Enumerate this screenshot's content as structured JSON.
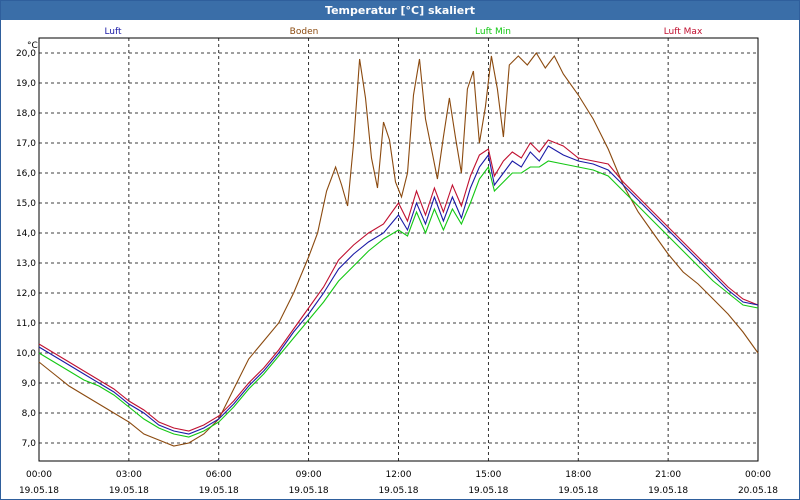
{
  "window": {
    "title": "Temperatur [°C] skaliert"
  },
  "chart_data": {
    "type": "line",
    "title": "Temperatur [°C] skaliert",
    "ylabel": "°C",
    "xlabel": "",
    "ylim": [
      6.4,
      20.5
    ],
    "xlim": [
      0,
      24
    ],
    "grid": true,
    "legend_placement": "top",
    "y_ticks": [
      "7,0",
      "8,0",
      "9,0",
      "10,0",
      "11,0",
      "12,0",
      "13,0",
      "14,0",
      "15,0",
      "16,0",
      "17,0",
      "18,0",
      "19,0",
      "20,0"
    ],
    "x_ticks": [
      {
        "time": "00:00",
        "date": "19.05.18"
      },
      {
        "time": "03:00",
        "date": "19.05.18"
      },
      {
        "time": "06:00",
        "date": "19.05.18"
      },
      {
        "time": "09:00",
        "date": "19.05.18"
      },
      {
        "time": "12:00",
        "date": "19.05.18"
      },
      {
        "time": "15:00",
        "date": "19.05.18"
      },
      {
        "time": "18:00",
        "date": "19.05.18"
      },
      {
        "time": "21:00",
        "date": "19.05.18"
      },
      {
        "time": "00:00",
        "date": "20.05.18"
      }
    ],
    "series": [
      {
        "name": "Luft",
        "color": "#1a1aa6",
        "points": [
          [
            0,
            10.2
          ],
          [
            0.5,
            9.9
          ],
          [
            1,
            9.6
          ],
          [
            1.5,
            9.3
          ],
          [
            2,
            9.0
          ],
          [
            2.5,
            8.7
          ],
          [
            3,
            8.3
          ],
          [
            3.5,
            8.0
          ],
          [
            4,
            7.6
          ],
          [
            4.5,
            7.4
          ],
          [
            5,
            7.3
          ],
          [
            5.5,
            7.5
          ],
          [
            6,
            7.8
          ],
          [
            6.5,
            8.3
          ],
          [
            7,
            8.9
          ],
          [
            7.5,
            9.4
          ],
          [
            8,
            10.0
          ],
          [
            8.5,
            10.7
          ],
          [
            9,
            11.3
          ],
          [
            9.5,
            12.0
          ],
          [
            10,
            12.8
          ],
          [
            10.5,
            13.3
          ],
          [
            11,
            13.7
          ],
          [
            11.5,
            14.0
          ],
          [
            12,
            14.6
          ],
          [
            12.3,
            14.1
          ],
          [
            12.6,
            15.0
          ],
          [
            12.9,
            14.3
          ],
          [
            13.2,
            15.2
          ],
          [
            13.5,
            14.4
          ],
          [
            13.8,
            15.2
          ],
          [
            14.1,
            14.5
          ],
          [
            14.4,
            15.5
          ],
          [
            14.7,
            16.2
          ],
          [
            15,
            16.6
          ],
          [
            15.2,
            15.6
          ],
          [
            15.5,
            16.0
          ],
          [
            15.8,
            16.4
          ],
          [
            16.1,
            16.2
          ],
          [
            16.4,
            16.7
          ],
          [
            16.7,
            16.4
          ],
          [
            17,
            16.9
          ],
          [
            17.5,
            16.6
          ],
          [
            18,
            16.4
          ],
          [
            18.5,
            16.3
          ],
          [
            19,
            16.1
          ],
          [
            19.5,
            15.6
          ],
          [
            20,
            15.1
          ],
          [
            20.5,
            14.6
          ],
          [
            21,
            14.1
          ],
          [
            21.5,
            13.6
          ],
          [
            22,
            13.1
          ],
          [
            22.5,
            12.6
          ],
          [
            23,
            12.1
          ],
          [
            23.5,
            11.7
          ],
          [
            24,
            11.6
          ]
        ]
      },
      {
        "name": "Boden",
        "color": "#8b4a0f",
        "points": [
          [
            0,
            9.7
          ],
          [
            0.5,
            9.3
          ],
          [
            1,
            8.9
          ],
          [
            1.5,
            8.6
          ],
          [
            2,
            8.3
          ],
          [
            2.5,
            8.0
          ],
          [
            3,
            7.7
          ],
          [
            3.5,
            7.3
          ],
          [
            4,
            7.1
          ],
          [
            4.5,
            6.9
          ],
          [
            5,
            7.0
          ],
          [
            5.5,
            7.3
          ],
          [
            6,
            7.8
          ],
          [
            6.5,
            8.8
          ],
          [
            7,
            9.8
          ],
          [
            7.5,
            10.4
          ],
          [
            8,
            11.0
          ],
          [
            8.5,
            12.0
          ],
          [
            9,
            13.2
          ],
          [
            9.3,
            14.0
          ],
          [
            9.6,
            15.4
          ],
          [
            9.9,
            16.2
          ],
          [
            10.1,
            15.6
          ],
          [
            10.3,
            14.9
          ],
          [
            10.5,
            17.0
          ],
          [
            10.7,
            19.8
          ],
          [
            10.9,
            18.5
          ],
          [
            11.1,
            16.5
          ],
          [
            11.3,
            15.5
          ],
          [
            11.5,
            17.7
          ],
          [
            11.7,
            17.1
          ],
          [
            11.9,
            15.7
          ],
          [
            12.1,
            15.2
          ],
          [
            12.3,
            16.0
          ],
          [
            12.5,
            18.6
          ],
          [
            12.7,
            19.8
          ],
          [
            12.9,
            17.8
          ],
          [
            13.1,
            16.8
          ],
          [
            13.3,
            15.8
          ],
          [
            13.5,
            17.2
          ],
          [
            13.7,
            18.5
          ],
          [
            13.9,
            17.2
          ],
          [
            14.1,
            16.0
          ],
          [
            14.3,
            18.8
          ],
          [
            14.5,
            19.4
          ],
          [
            14.7,
            17.0
          ],
          [
            14.9,
            18.2
          ],
          [
            15.1,
            19.9
          ],
          [
            15.3,
            18.8
          ],
          [
            15.5,
            17.2
          ],
          [
            15.7,
            19.6
          ],
          [
            16,
            19.9
          ],
          [
            16.3,
            19.6
          ],
          [
            16.6,
            20.0
          ],
          [
            16.9,
            19.5
          ],
          [
            17.2,
            19.9
          ],
          [
            17.5,
            19.3
          ],
          [
            18,
            18.6
          ],
          [
            18.5,
            17.8
          ],
          [
            19,
            16.8
          ],
          [
            19.5,
            15.6
          ],
          [
            20,
            14.7
          ],
          [
            20.5,
            14.0
          ],
          [
            21,
            13.3
          ],
          [
            21.5,
            12.7
          ],
          [
            22,
            12.3
          ],
          [
            22.5,
            11.8
          ],
          [
            23,
            11.3
          ],
          [
            23.5,
            10.7
          ],
          [
            24,
            10.0
          ]
        ]
      },
      {
        "name": "Luft Min",
        "color": "#14c814",
        "points": [
          [
            0,
            10.0
          ],
          [
            0.5,
            9.7
          ],
          [
            1,
            9.4
          ],
          [
            1.5,
            9.1
          ],
          [
            2,
            8.9
          ],
          [
            2.5,
            8.6
          ],
          [
            3,
            8.2
          ],
          [
            3.5,
            7.8
          ],
          [
            4,
            7.5
          ],
          [
            4.5,
            7.3
          ],
          [
            5,
            7.2
          ],
          [
            5.5,
            7.4
          ],
          [
            6,
            7.7
          ],
          [
            6.5,
            8.2
          ],
          [
            7,
            8.8
          ],
          [
            7.5,
            9.3
          ],
          [
            8,
            9.9
          ],
          [
            8.5,
            10.5
          ],
          [
            9,
            11.1
          ],
          [
            9.5,
            11.7
          ],
          [
            10,
            12.4
          ],
          [
            10.5,
            12.9
          ],
          [
            11,
            13.4
          ],
          [
            11.5,
            13.8
          ],
          [
            12,
            14.1
          ],
          [
            12.3,
            13.9
          ],
          [
            12.6,
            14.7
          ],
          [
            12.9,
            14.0
          ],
          [
            13.2,
            14.8
          ],
          [
            13.5,
            14.1
          ],
          [
            13.8,
            14.8
          ],
          [
            14.1,
            14.3
          ],
          [
            14.4,
            15.0
          ],
          [
            14.7,
            15.8
          ],
          [
            15,
            16.2
          ],
          [
            15.2,
            15.4
          ],
          [
            15.5,
            15.7
          ],
          [
            15.8,
            16.0
          ],
          [
            16.1,
            16.0
          ],
          [
            16.4,
            16.2
          ],
          [
            16.7,
            16.2
          ],
          [
            17,
            16.4
          ],
          [
            17.5,
            16.3
          ],
          [
            18,
            16.2
          ],
          [
            18.5,
            16.1
          ],
          [
            19,
            15.9
          ],
          [
            19.5,
            15.4
          ],
          [
            20,
            14.9
          ],
          [
            20.5,
            14.4
          ],
          [
            21,
            13.9
          ],
          [
            21.5,
            13.4
          ],
          [
            22,
            12.9
          ],
          [
            22.5,
            12.4
          ],
          [
            23,
            12.0
          ],
          [
            23.5,
            11.6
          ],
          [
            24,
            11.5
          ]
        ]
      },
      {
        "name": "Luft Max",
        "color": "#c01030",
        "points": [
          [
            0,
            10.3
          ],
          [
            0.5,
            10.0
          ],
          [
            1,
            9.7
          ],
          [
            1.5,
            9.4
          ],
          [
            2,
            9.1
          ],
          [
            2.5,
            8.8
          ],
          [
            3,
            8.4
          ],
          [
            3.5,
            8.1
          ],
          [
            4,
            7.7
          ],
          [
            4.5,
            7.5
          ],
          [
            5,
            7.4
          ],
          [
            5.5,
            7.6
          ],
          [
            6,
            7.9
          ],
          [
            6.5,
            8.4
          ],
          [
            7,
            9.0
          ],
          [
            7.5,
            9.5
          ],
          [
            8,
            10.1
          ],
          [
            8.5,
            10.8
          ],
          [
            9,
            11.5
          ],
          [
            9.5,
            12.2
          ],
          [
            10,
            13.1
          ],
          [
            10.5,
            13.6
          ],
          [
            11,
            14.0
          ],
          [
            11.5,
            14.3
          ],
          [
            12,
            15.0
          ],
          [
            12.3,
            14.4
          ],
          [
            12.6,
            15.4
          ],
          [
            12.9,
            14.6
          ],
          [
            13.2,
            15.5
          ],
          [
            13.5,
            14.7
          ],
          [
            13.8,
            15.6
          ],
          [
            14.1,
            14.9
          ],
          [
            14.4,
            15.9
          ],
          [
            14.7,
            16.6
          ],
          [
            15,
            16.8
          ],
          [
            15.2,
            15.9
          ],
          [
            15.5,
            16.4
          ],
          [
            15.8,
            16.7
          ],
          [
            16.1,
            16.5
          ],
          [
            16.4,
            17.0
          ],
          [
            16.7,
            16.7
          ],
          [
            17,
            17.1
          ],
          [
            17.5,
            16.9
          ],
          [
            18,
            16.5
          ],
          [
            18.5,
            16.4
          ],
          [
            19,
            16.3
          ],
          [
            19.5,
            15.7
          ],
          [
            20,
            15.2
          ],
          [
            20.5,
            14.7
          ],
          [
            21,
            14.2
          ],
          [
            21.5,
            13.7
          ],
          [
            22,
            13.2
          ],
          [
            22.5,
            12.7
          ],
          [
            23,
            12.2
          ],
          [
            23.5,
            11.8
          ],
          [
            24,
            11.6
          ]
        ]
      }
    ]
  }
}
